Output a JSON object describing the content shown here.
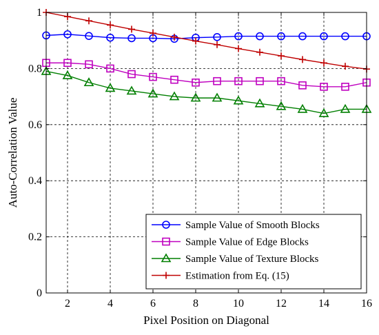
{
  "chart_data": {
    "type": "line",
    "xlabel": "Pixel Position on Diagonal",
    "ylabel": "Auto-Correlation Value",
    "xlim": [
      1,
      16
    ],
    "ylim": [
      0,
      1
    ],
    "xticks": [
      2,
      4,
      6,
      8,
      10,
      12,
      14,
      16
    ],
    "yticks": [
      0,
      0.2,
      0.4,
      0.6,
      0.8,
      1
    ],
    "ytick_labels": [
      "0",
      "0.2",
      "0.4",
      "0.6",
      "0.8",
      "1"
    ],
    "xtick_labels": [
      "2",
      "4",
      "6",
      "8",
      "10",
      "12",
      "14",
      "16"
    ],
    "grid": true,
    "legend_position": "bottom-right",
    "x": [
      1,
      2,
      3,
      4,
      5,
      6,
      7,
      8,
      9,
      10,
      11,
      12,
      13,
      14,
      15,
      16
    ],
    "series": [
      {
        "name": "Sample Value of Smooth Blocks",
        "color": "#0000ff",
        "marker": "circle",
        "values": [
          0.918,
          0.922,
          0.916,
          0.91,
          0.908,
          0.908,
          0.906,
          0.91,
          0.912,
          0.915,
          0.915,
          0.915,
          0.915,
          0.915,
          0.915,
          0.915
        ]
      },
      {
        "name": "Sample Value of Edge Blocks",
        "color": "#bf00bf",
        "marker": "square",
        "values": [
          0.82,
          0.82,
          0.815,
          0.8,
          0.78,
          0.77,
          0.76,
          0.75,
          0.755,
          0.755,
          0.755,
          0.755,
          0.74,
          0.735,
          0.735,
          0.75
        ]
      },
      {
        "name": "Sample Value of Texture Blocks",
        "color": "#007f00",
        "marker": "triangle",
        "values": [
          0.79,
          0.775,
          0.75,
          0.73,
          0.72,
          0.71,
          0.7,
          0.695,
          0.695,
          0.685,
          0.675,
          0.665,
          0.655,
          0.64,
          0.655,
          0.655
        ]
      },
      {
        "name": "Estimation from Eq. (15)",
        "color": "#bf0000",
        "marker": "plus",
        "values": [
          1.0,
          0.985,
          0.97,
          0.955,
          0.94,
          0.926,
          0.912,
          0.898,
          0.885,
          0.871,
          0.858,
          0.845,
          0.832,
          0.82,
          0.808,
          0.798
        ]
      }
    ]
  }
}
